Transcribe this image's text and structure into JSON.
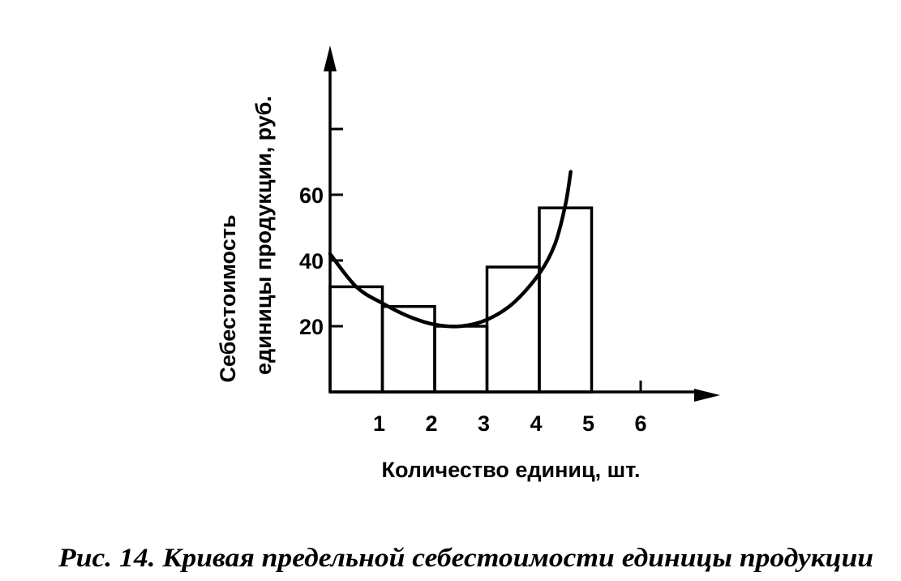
{
  "chart_data": {
    "type": "bar",
    "title": "",
    "caption": "Рис. 14. Кривая предельной себестоимости единицы продукции",
    "xlabel": "Количество единиц, шт.",
    "ylabel_lines": [
      "Себестоимость",
      "единицы продукции, руб."
    ],
    "x_ticks": [
      1,
      2,
      3,
      4,
      5,
      6
    ],
    "y_ticks": [
      20,
      40,
      60
    ],
    "xlim": [
      0,
      7.2
    ],
    "ylim": [
      0,
      104
    ],
    "bars": [
      {
        "x0": 0,
        "x1": 1,
        "value": 32
      },
      {
        "x0": 1,
        "x1": 2,
        "value": 26
      },
      {
        "x0": 2,
        "x1": 3,
        "value": 20
      },
      {
        "x0": 3,
        "x1": 4,
        "value": 38
      },
      {
        "x0": 4,
        "x1": 5,
        "value": 56
      }
    ],
    "curve": [
      {
        "x": 0,
        "y": 42
      },
      {
        "x": 0.5,
        "y": 32
      },
      {
        "x": 1,
        "y": 27
      },
      {
        "x": 1.5,
        "y": 23
      },
      {
        "x": 2,
        "y": 20.5
      },
      {
        "x": 2.5,
        "y": 20
      },
      {
        "x": 3,
        "y": 22
      },
      {
        "x": 3.5,
        "y": 27
      },
      {
        "x": 4,
        "y": 36
      },
      {
        "x": 4.3,
        "y": 45
      },
      {
        "x": 4.5,
        "y": 57
      },
      {
        "x": 4.6,
        "y": 67
      }
    ],
    "grid": false,
    "legend": "none"
  }
}
